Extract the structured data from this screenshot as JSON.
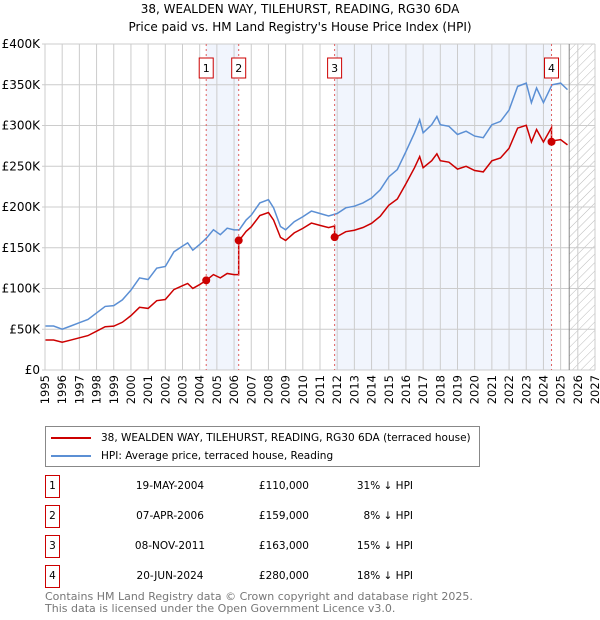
{
  "chart_data": {
    "type": "line",
    "title": "38, WEALDEN WAY, TILEHURST, READING, RG30 6DA",
    "subtitle": "Price paid vs. HM Land Registry's House Price Index (HPI)",
    "xlim": [
      1995,
      2027
    ],
    "ylim": [
      0,
      400000
    ],
    "grid": true,
    "x_ticks": [
      "1995",
      "1996",
      "1997",
      "1998",
      "1999",
      "2000",
      "2001",
      "2002",
      "2003",
      "2004",
      "2005",
      "2006",
      "2007",
      "2008",
      "2009",
      "2010",
      "2011",
      "2012",
      "2013",
      "2014",
      "2015",
      "2016",
      "2017",
      "2018",
      "2019",
      "2020",
      "2021",
      "2022",
      "2023",
      "2024",
      "2025",
      "2026",
      "2027"
    ],
    "y_ticks": [
      {
        "v": 0,
        "label": "£0"
      },
      {
        "v": 50000,
        "label": "£50K"
      },
      {
        "v": 100000,
        "label": "£100K"
      },
      {
        "v": 150000,
        "label": "£150K"
      },
      {
        "v": 200000,
        "label": "£200K"
      },
      {
        "v": 250000,
        "label": "£250K"
      },
      {
        "v": 300000,
        "label": "£300K"
      },
      {
        "v": 350000,
        "label": "£350K"
      },
      {
        "v": 400000,
        "label": "£400K"
      }
    ],
    "forecast_from": 2025.5,
    "series": [
      {
        "name": "HPI: Average price, terraced house, Reading",
        "color": "#5b8fd4",
        "x": [
          1995,
          1995.5,
          1996,
          1996.5,
          1997,
          1997.5,
          1998,
          1998.5,
          1999,
          1999.5,
          2000,
          2000.5,
          2001,
          2001.5,
          2002,
          2002.5,
          2003,
          2003.3,
          2003.6,
          2004,
          2004.4,
          2004.8,
          2005.2,
          2005.6,
          2006,
          2006.3,
          2006.7,
          2007,
          2007.5,
          2008,
          2008.3,
          2008.7,
          2009,
          2009.5,
          2010,
          2010.5,
          2011,
          2011.5,
          2012,
          2012.5,
          2013,
          2013.5,
          2014,
          2014.5,
          2015,
          2015.5,
          2016,
          2016.5,
          2016.8,
          2017,
          2017.5,
          2017.8,
          2018,
          2018.5,
          2019,
          2019.5,
          2020,
          2020.5,
          2021,
          2021.5,
          2022,
          2022.5,
          2023,
          2023.3,
          2023.6,
          2024,
          2024.5,
          2025,
          2025.4
        ],
        "values": [
          54000,
          54000,
          50000,
          54000,
          58000,
          62000,
          70000,
          78000,
          79000,
          86000,
          98000,
          113000,
          111000,
          125000,
          127000,
          145000,
          152000,
          156000,
          147000,
          154000,
          162000,
          172000,
          166000,
          174000,
          172000,
          172000,
          184000,
          190000,
          205000,
          209000,
          199000,
          176000,
          172000,
          182000,
          188000,
          195000,
          192000,
          189000,
          192000,
          199000,
          201000,
          205000,
          211000,
          221000,
          237000,
          246000,
          268000,
          291000,
          307000,
          291000,
          301000,
          311000,
          301000,
          299000,
          289000,
          293000,
          287000,
          285000,
          301000,
          305000,
          319000,
          348000,
          352000,
          328000,
          346000,
          328000,
          350000,
          352000,
          344000
        ]
      },
      {
        "name": "38, WEALDEN WAY, TILEHURST, READING, RG30 6DA (terraced house)",
        "color": "#cc0000"
      }
    ],
    "sales": [
      {
        "n": "1",
        "x": 2004.38,
        "date": "19-MAY-2004",
        "price": 110000,
        "price_label": "£110,000",
        "hpi": "31% ↓ HPI"
      },
      {
        "n": "2",
        "x": 2006.27,
        "date": "07-APR-2006",
        "price": 159000,
        "price_label": "£159,000",
        "hpi": "8% ↓ HPI"
      },
      {
        "n": "3",
        "x": 2011.85,
        "date": "08-NOV-2011",
        "price": 163000,
        "price_label": "£163,000",
        "hpi": "15% ↓ HPI"
      },
      {
        "n": "4",
        "x": 2024.47,
        "date": "20-JUN-2024",
        "price": 280000,
        "price_label": "£280,000",
        "hpi": "18% ↓ HPI"
      }
    ]
  },
  "footer": {
    "line1": "Contains HM Land Registry data © Crown copyright and database right 2025.",
    "line2": "This data is licensed under the Open Government Licence v3.0."
  }
}
